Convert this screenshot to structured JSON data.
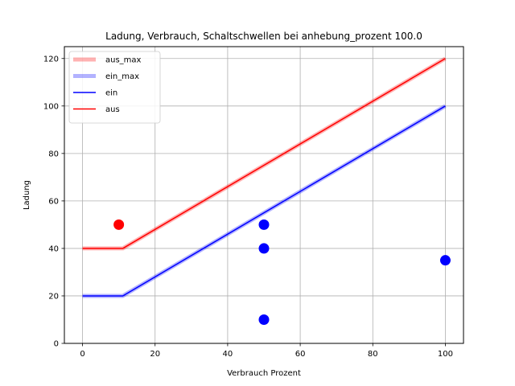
{
  "chart_data": {
    "type": "line",
    "title": "Ladung, Verbrauch, Schaltschwellen bei anhebung_prozent 100.0",
    "xlabel": "Verbrauch Prozent",
    "ylabel": "Ladung",
    "xlim": [
      -5,
      105
    ],
    "ylim": [
      0,
      125
    ],
    "xticks": [
      0,
      20,
      40,
      60,
      80,
      100
    ],
    "yticks": [
      0,
      20,
      40,
      60,
      80,
      100,
      120
    ],
    "grid": true,
    "legend_position": "top-left",
    "series": [
      {
        "name": "aus_max",
        "color": "#ff0000",
        "style": "band",
        "opacity": 0.3,
        "x": [
          0,
          11.1,
          100
        ],
        "y": [
          40,
          40,
          120
        ]
      },
      {
        "name": "ein_max",
        "color": "#0000ff",
        "style": "band",
        "opacity": 0.3,
        "x": [
          0,
          11.1,
          100
        ],
        "y": [
          20,
          20,
          100
        ]
      },
      {
        "name": "ein",
        "color": "#0000ff",
        "style": "line",
        "x": [
          0,
          11.1,
          100
        ],
        "y": [
          20,
          20,
          100
        ]
      },
      {
        "name": "aus",
        "color": "#ff0000",
        "style": "line",
        "x": [
          0,
          11.1,
          100
        ],
        "y": [
          40,
          40,
          120
        ]
      }
    ],
    "points": [
      {
        "x": 10,
        "y": 50,
        "color": "#ff0000"
      },
      {
        "x": 50,
        "y": 50,
        "color": "#0000ff"
      },
      {
        "x": 50,
        "y": 40,
        "color": "#0000ff"
      },
      {
        "x": 50,
        "y": 10,
        "color": "#0000ff"
      },
      {
        "x": 100,
        "y": 35,
        "color": "#0000ff"
      }
    ]
  }
}
